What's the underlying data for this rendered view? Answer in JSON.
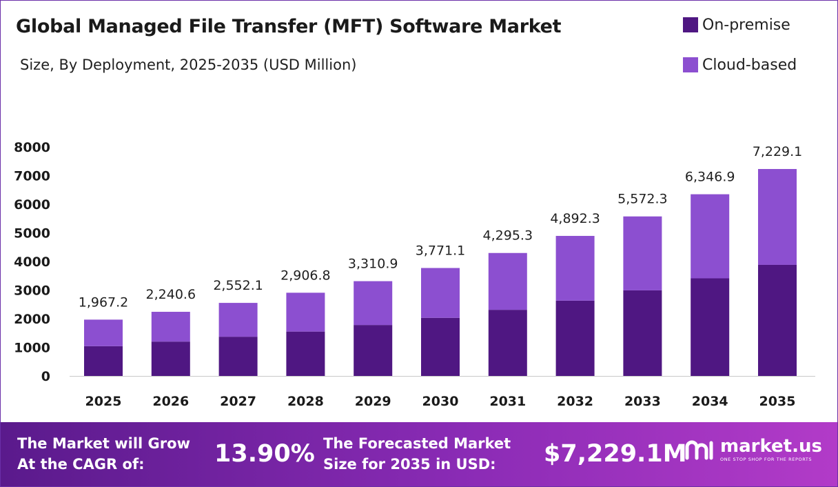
{
  "title": "Global Managed File Transfer (MFT) Software Market",
  "subtitle": "Size, By Deployment, 2025-2035 (USD Million)",
  "legend": [
    {
      "label": "On-premise",
      "color": "#4f1782"
    },
    {
      "label": "Cloud-based",
      "color": "#8c4fd0"
    }
  ],
  "chart_data": {
    "type": "bar",
    "stacked": true,
    "categories": [
      "2025",
      "2026",
      "2027",
      "2028",
      "2029",
      "2030",
      "2031",
      "2032",
      "2033",
      "2034",
      "2035"
    ],
    "series": [
      {
        "name": "On-premise",
        "color": "#4f1782",
        "values": [
          1040,
          1200,
          1370,
          1550,
          1780,
          2030,
          2310,
          2630,
          2990,
          3410,
          3880
        ]
      },
      {
        "name": "Cloud-based",
        "color": "#8c4fd0",
        "values": [
          927.2,
          1040.6,
          1182.1,
          1356.8,
          1530.9,
          1741.1,
          1985.3,
          2262.3,
          2582.3,
          2936.9,
          3349.1
        ]
      }
    ],
    "totals": [
      1967.2,
      2240.6,
      2552.1,
      2906.8,
      3310.9,
      3771.1,
      4295.3,
      4892.3,
      5572.3,
      6346.9,
      7229.1
    ],
    "total_labels": [
      "1,967.2",
      "2,240.6",
      "2,552.1",
      "2,906.8",
      "3,310.9",
      "3,771.1",
      "4,295.3",
      "4,892.3",
      "5,572.3",
      "6,346.9",
      "7,229.1"
    ],
    "yticks": [
      0,
      1000,
      2000,
      3000,
      4000,
      5000,
      6000,
      7000,
      8000
    ],
    "ylim": [
      0,
      8000
    ],
    "xlabel": "",
    "ylabel": "",
    "grid": false,
    "legend_position": "top-right"
  },
  "footer": {
    "cagr_label_1": "The Market will Grow",
    "cagr_label_2": "At the CAGR of:",
    "cagr_value": "13.90%",
    "forecast_label_1": "The Forecasted Market",
    "forecast_label_2": "Size for 2035 in USD:",
    "forecast_value": "$7,229.1M",
    "brand": "market.us",
    "tagline": "ONE STOP SHOP FOR THE REPORTS"
  }
}
